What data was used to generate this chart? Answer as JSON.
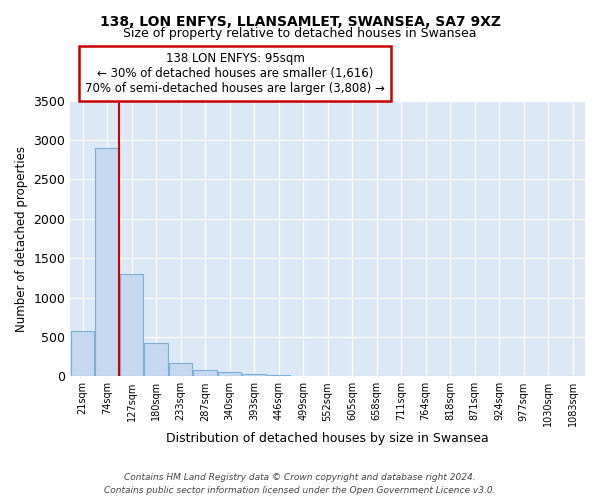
{
  "title": "138, LON ENFYS, LLANSAMLET, SWANSEA, SA7 9XZ",
  "subtitle": "Size of property relative to detached houses in Swansea",
  "xlabel": "Distribution of detached houses by size in Swansea",
  "ylabel": "Number of detached properties",
  "bar_labels": [
    "21sqm",
    "74sqm",
    "127sqm",
    "180sqm",
    "233sqm",
    "287sqm",
    "340sqm",
    "393sqm",
    "446sqm",
    "499sqm",
    "552sqm",
    "605sqm",
    "658sqm",
    "711sqm",
    "764sqm",
    "818sqm",
    "871sqm",
    "924sqm",
    "977sqm",
    "1030sqm",
    "1083sqm"
  ],
  "bar_values": [
    580,
    2900,
    1300,
    420,
    170,
    80,
    50,
    30,
    20,
    0,
    0,
    0,
    0,
    0,
    0,
    0,
    0,
    0,
    0,
    0,
    0
  ],
  "bar_color": "#c5d8f0",
  "bar_edge_color": "#7bafd4",
  "vline_x": 1.5,
  "vline_color": "#cc0000",
  "ylim": [
    0,
    3500
  ],
  "yticks": [
    0,
    500,
    1000,
    1500,
    2000,
    2500,
    3000,
    3500
  ],
  "annotation_title": "138 LON ENFYS: 95sqm",
  "annotation_line1": "← 30% of detached houses are smaller (1,616)",
  "annotation_line2": "70% of semi-detached houses are larger (3,808) →",
  "annotation_box_facecolor": "#ffffff",
  "annotation_box_edgecolor": "#cc0000",
  "footer_line1": "Contains HM Land Registry data © Crown copyright and database right 2024.",
  "footer_line2": "Contains public sector information licensed under the Open Government Licence v3.0.",
  "plot_bg_color": "#dce8f5",
  "fig_bg_color": "#ffffff"
}
